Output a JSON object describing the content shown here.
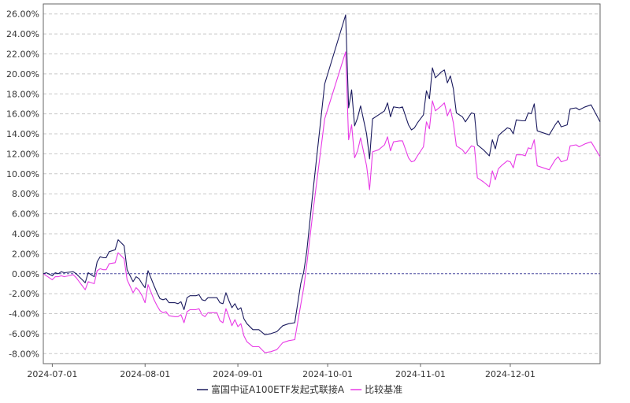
{
  "chart_data": {
    "type": "line",
    "title": "",
    "xlabel": "",
    "ylabel": "",
    "ylim": [
      -9,
      27
    ],
    "y_ticks": [
      -8,
      -6,
      -4,
      -2,
      0,
      2,
      4,
      6,
      8,
      10,
      12,
      14,
      16,
      18,
      20,
      22,
      24,
      26
    ],
    "y_tick_labels": [
      "-8.00%",
      "-6.00%",
      "-4.00%",
      "-2.00%",
      "0.00%",
      "2.00%",
      "4.00%",
      "6.00%",
      "8.00%",
      "10.00%",
      "12.00%",
      "14.00%",
      "16.00%",
      "18.00%",
      "20.00%",
      "22.00%",
      "24.00%",
      "26.00%"
    ],
    "x_range": [
      "2024-06-28",
      "2024-12-31"
    ],
    "x_tick_labels": [
      "2024-07-01",
      "2024-08-01",
      "2024-09-01",
      "2024-10-01",
      "2024-11-01",
      "2024-12-01"
    ],
    "grid": "horizontal dashed",
    "zero_line": "dashed",
    "legend_position": "bottom",
    "colors": {
      "series_1": "#1a1a5e",
      "series_2": "#e83be6",
      "zero_line": "#4a4aa0",
      "grid": "#c8c8c8",
      "axis": "#444444"
    },
    "series": [
      {
        "name": "富国中证A100ETF发起式联接A",
        "points": [
          [
            "2024-06-28",
            0.0
          ],
          [
            "2024-06-29",
            0.1
          ],
          [
            "2024-07-01",
            -0.2
          ],
          [
            "2024-07-02",
            0.1
          ],
          [
            "2024-07-03",
            0.0
          ],
          [
            "2024-07-04",
            0.2
          ],
          [
            "2024-07-05",
            0.1
          ],
          [
            "2024-07-08",
            0.2
          ],
          [
            "2024-07-09",
            0.0
          ],
          [
            "2024-07-10",
            -0.3
          ],
          [
            "2024-07-11",
            -0.6
          ],
          [
            "2024-07-12",
            -0.9
          ],
          [
            "2024-07-13",
            0.1
          ],
          [
            "2024-07-15",
            -0.3
          ],
          [
            "2024-07-16",
            1.2
          ],
          [
            "2024-07-17",
            1.7
          ],
          [
            "2024-07-18",
            1.6
          ],
          [
            "2024-07-19",
            1.6
          ],
          [
            "2024-07-20",
            2.2
          ],
          [
            "2024-07-22",
            2.4
          ],
          [
            "2024-07-23",
            3.4
          ],
          [
            "2024-07-24",
            3.1
          ],
          [
            "2024-07-25",
            2.8
          ],
          [
            "2024-07-26",
            0.4
          ],
          [
            "2024-07-28",
            -0.8
          ],
          [
            "2024-07-29",
            -0.3
          ],
          [
            "2024-07-30",
            -0.5
          ],
          [
            "2024-07-31",
            -1.0
          ],
          [
            "2024-08-01",
            -1.4
          ],
          [
            "2024-08-02",
            0.3
          ],
          [
            "2024-08-04",
            -1.2
          ],
          [
            "2024-08-05",
            -1.9
          ],
          [
            "2024-08-06",
            -2.5
          ],
          [
            "2024-08-07",
            -2.6
          ],
          [
            "2024-08-08",
            -2.5
          ],
          [
            "2024-08-09",
            -2.9
          ],
          [
            "2024-08-11",
            -2.9
          ],
          [
            "2024-08-12",
            -3.0
          ],
          [
            "2024-08-13",
            -2.8
          ],
          [
            "2024-08-14",
            -3.6
          ],
          [
            "2024-08-15",
            -2.4
          ],
          [
            "2024-08-16",
            -2.2
          ],
          [
            "2024-08-18",
            -2.2
          ],
          [
            "2024-08-19",
            -2.1
          ],
          [
            "2024-08-20",
            -2.6
          ],
          [
            "2024-08-21",
            -2.7
          ],
          [
            "2024-08-22",
            -2.4
          ],
          [
            "2024-08-23",
            -2.4
          ],
          [
            "2024-08-25",
            -2.4
          ],
          [
            "2024-08-26",
            -2.9
          ],
          [
            "2024-08-27",
            -3.0
          ],
          [
            "2024-08-28",
            -1.9
          ],
          [
            "2024-08-29",
            -2.7
          ],
          [
            "2024-08-30",
            -3.4
          ],
          [
            "2024-08-31",
            -3.0
          ],
          [
            "2024-09-01",
            -3.6
          ],
          [
            "2024-09-02",
            -3.4
          ],
          [
            "2024-09-03",
            -4.5
          ],
          [
            "2024-09-04",
            -5.0
          ],
          [
            "2024-09-06",
            -5.6
          ],
          [
            "2024-09-08",
            -5.6
          ],
          [
            "2024-09-10",
            -6.1
          ],
          [
            "2024-09-12",
            -6.0
          ],
          [
            "2024-09-14",
            -5.8
          ],
          [
            "2024-09-16",
            -5.2
          ],
          [
            "2024-09-18",
            -5.0
          ],
          [
            "2024-09-20",
            -4.9
          ],
          [
            "2024-09-22",
            -1.0
          ],
          [
            "2024-09-23",
            0.2
          ],
          [
            "2024-09-24",
            2.2
          ],
          [
            "2024-09-26",
            8.0
          ],
          [
            "2024-09-30",
            19.0
          ],
          [
            "2024-10-07",
            25.9
          ],
          [
            "2024-10-08",
            16.6
          ],
          [
            "2024-10-09",
            18.4
          ],
          [
            "2024-10-10",
            14.8
          ],
          [
            "2024-10-11",
            15.6
          ],
          [
            "2024-10-12",
            16.8
          ],
          [
            "2024-10-14",
            14.0
          ],
          [
            "2024-10-15",
            11.5
          ],
          [
            "2024-10-16",
            15.5
          ],
          [
            "2024-10-18",
            15.9
          ],
          [
            "2024-10-20",
            16.3
          ],
          [
            "2024-10-21",
            17.1
          ],
          [
            "2024-10-22",
            15.7
          ],
          [
            "2024-10-23",
            16.7
          ],
          [
            "2024-10-25",
            16.6
          ],
          [
            "2024-10-26",
            16.7
          ],
          [
            "2024-10-28",
            14.9
          ],
          [
            "2024-10-29",
            14.4
          ],
          [
            "2024-10-30",
            14.6
          ],
          [
            "2024-10-31",
            15.1
          ],
          [
            "2024-11-02",
            15.9
          ],
          [
            "2024-11-03",
            18.3
          ],
          [
            "2024-11-04",
            17.5
          ],
          [
            "2024-11-05",
            20.6
          ],
          [
            "2024-11-06",
            19.6
          ],
          [
            "2024-11-08",
            20.2
          ],
          [
            "2024-11-09",
            20.4
          ],
          [
            "2024-11-10",
            19.1
          ],
          [
            "2024-11-11",
            19.8
          ],
          [
            "2024-11-12",
            18.5
          ],
          [
            "2024-11-13",
            16.1
          ],
          [
            "2024-11-15",
            15.7
          ],
          [
            "2024-11-16",
            15.2
          ],
          [
            "2024-11-18",
            16.1
          ],
          [
            "2024-11-19",
            16.0
          ],
          [
            "2024-11-20",
            12.9
          ],
          [
            "2024-11-22",
            12.4
          ],
          [
            "2024-11-24",
            11.8
          ],
          [
            "2024-11-25",
            13.4
          ],
          [
            "2024-11-26",
            12.5
          ],
          [
            "2024-11-27",
            13.8
          ],
          [
            "2024-11-28",
            14.1
          ],
          [
            "2024-11-30",
            14.6
          ],
          [
            "2024-12-01",
            14.5
          ],
          [
            "2024-12-02",
            14.0
          ],
          [
            "2024-12-03",
            15.4
          ],
          [
            "2024-12-05",
            15.3
          ],
          [
            "2024-12-06",
            15.3
          ],
          [
            "2024-12-07",
            16.1
          ],
          [
            "2024-12-08",
            16.0
          ],
          [
            "2024-12-09",
            17.0
          ],
          [
            "2024-12-10",
            14.3
          ],
          [
            "2024-12-12",
            14.1
          ],
          [
            "2024-12-14",
            13.9
          ],
          [
            "2024-12-16",
            14.9
          ],
          [
            "2024-12-17",
            15.3
          ],
          [
            "2024-12-18",
            14.7
          ],
          [
            "2024-12-20",
            14.9
          ],
          [
            "2024-12-21",
            16.5
          ],
          [
            "2024-12-23",
            16.6
          ],
          [
            "2024-12-24",
            16.4
          ],
          [
            "2024-12-26",
            16.7
          ],
          [
            "2024-12-28",
            16.9
          ],
          [
            "2024-12-31",
            15.2
          ]
        ]
      },
      {
        "name": "比较基准",
        "points": [
          [
            "2024-06-28",
            0.0
          ],
          [
            "2024-06-29",
            -0.2
          ],
          [
            "2024-07-01",
            -0.6
          ],
          [
            "2024-07-02",
            -0.3
          ],
          [
            "2024-07-03",
            -0.3
          ],
          [
            "2024-07-04",
            -0.2
          ],
          [
            "2024-07-05",
            -0.3
          ],
          [
            "2024-07-08",
            -0.1
          ],
          [
            "2024-07-09",
            -0.4
          ],
          [
            "2024-07-10",
            -0.8
          ],
          [
            "2024-07-11",
            -1.2
          ],
          [
            "2024-07-12",
            -1.6
          ],
          [
            "2024-07-13",
            -0.8
          ],
          [
            "2024-07-15",
            -1.0
          ],
          [
            "2024-07-16",
            0.3
          ],
          [
            "2024-07-17",
            0.5
          ],
          [
            "2024-07-18",
            0.4
          ],
          [
            "2024-07-19",
            0.4
          ],
          [
            "2024-07-20",
            1.0
          ],
          [
            "2024-07-22",
            1.1
          ],
          [
            "2024-07-23",
            2.1
          ],
          [
            "2024-07-24",
            1.8
          ],
          [
            "2024-07-25",
            1.5
          ],
          [
            "2024-07-26",
            -0.6
          ],
          [
            "2024-07-28",
            -1.9
          ],
          [
            "2024-07-29",
            -1.4
          ],
          [
            "2024-07-30",
            -1.7
          ],
          [
            "2024-07-31",
            -2.2
          ],
          [
            "2024-08-01",
            -2.9
          ],
          [
            "2024-08-02",
            -1.1
          ],
          [
            "2024-08-04",
            -2.6
          ],
          [
            "2024-08-05",
            -3.2
          ],
          [
            "2024-08-06",
            -3.7
          ],
          [
            "2024-08-07",
            -3.9
          ],
          [
            "2024-08-08",
            -3.8
          ],
          [
            "2024-08-09",
            -4.2
          ],
          [
            "2024-08-11",
            -4.3
          ],
          [
            "2024-08-12",
            -4.3
          ],
          [
            "2024-08-13",
            -4.1
          ],
          [
            "2024-08-14",
            -4.9
          ],
          [
            "2024-08-15",
            -3.8
          ],
          [
            "2024-08-16",
            -3.6
          ],
          [
            "2024-08-18",
            -3.6
          ],
          [
            "2024-08-19",
            -3.5
          ],
          [
            "2024-08-20",
            -4.1
          ],
          [
            "2024-08-21",
            -4.3
          ],
          [
            "2024-08-22",
            -3.9
          ],
          [
            "2024-08-23",
            -3.9
          ],
          [
            "2024-08-25",
            -3.9
          ],
          [
            "2024-08-26",
            -4.7
          ],
          [
            "2024-08-27",
            -4.9
          ],
          [
            "2024-08-28",
            -3.5
          ],
          [
            "2024-08-29",
            -4.3
          ],
          [
            "2024-08-30",
            -5.2
          ],
          [
            "2024-08-31",
            -4.6
          ],
          [
            "2024-09-01",
            -5.3
          ],
          [
            "2024-09-02",
            -5.0
          ],
          [
            "2024-09-03",
            -6.2
          ],
          [
            "2024-09-04",
            -6.8
          ],
          [
            "2024-09-06",
            -7.3
          ],
          [
            "2024-09-08",
            -7.3
          ],
          [
            "2024-09-10",
            -7.9
          ],
          [
            "2024-09-12",
            -7.8
          ],
          [
            "2024-09-14",
            -7.6
          ],
          [
            "2024-09-16",
            -6.9
          ],
          [
            "2024-09-18",
            -6.7
          ],
          [
            "2024-09-20",
            -6.6
          ],
          [
            "2024-09-22",
            -3.1
          ],
          [
            "2024-09-23",
            -1.4
          ],
          [
            "2024-09-24",
            0.9
          ],
          [
            "2024-09-26",
            6.0
          ],
          [
            "2024-09-30",
            15.5
          ],
          [
            "2024-10-07",
            22.2
          ],
          [
            "2024-10-08",
            13.4
          ],
          [
            "2024-10-09",
            14.9
          ],
          [
            "2024-10-10",
            11.6
          ],
          [
            "2024-10-11",
            12.3
          ],
          [
            "2024-10-12",
            13.6
          ],
          [
            "2024-10-14",
            10.8
          ],
          [
            "2024-10-15",
            8.4
          ],
          [
            "2024-10-16",
            12.2
          ],
          [
            "2024-10-18",
            12.4
          ],
          [
            "2024-10-20",
            12.9
          ],
          [
            "2024-10-21",
            13.7
          ],
          [
            "2024-10-22",
            12.3
          ],
          [
            "2024-10-23",
            13.2
          ],
          [
            "2024-10-25",
            13.3
          ],
          [
            "2024-10-26",
            13.3
          ],
          [
            "2024-10-28",
            11.6
          ],
          [
            "2024-10-29",
            11.2
          ],
          [
            "2024-10-30",
            11.3
          ],
          [
            "2024-10-31",
            11.8
          ],
          [
            "2024-11-02",
            12.7
          ],
          [
            "2024-11-03",
            15.2
          ],
          [
            "2024-11-04",
            14.5
          ],
          [
            "2024-11-05",
            17.3
          ],
          [
            "2024-11-06",
            16.3
          ],
          [
            "2024-11-08",
            16.8
          ],
          [
            "2024-11-09",
            17.1
          ],
          [
            "2024-11-10",
            15.8
          ],
          [
            "2024-11-11",
            16.5
          ],
          [
            "2024-11-12",
            15.1
          ],
          [
            "2024-11-13",
            12.8
          ],
          [
            "2024-11-15",
            12.4
          ],
          [
            "2024-11-16",
            12.0
          ],
          [
            "2024-11-18",
            12.8
          ],
          [
            "2024-11-19",
            12.7
          ],
          [
            "2024-11-20",
            9.6
          ],
          [
            "2024-11-22",
            9.2
          ],
          [
            "2024-11-24",
            8.7
          ],
          [
            "2024-11-25",
            10.3
          ],
          [
            "2024-11-26",
            9.4
          ],
          [
            "2024-11-27",
            10.5
          ],
          [
            "2024-11-28",
            10.8
          ],
          [
            "2024-11-30",
            11.3
          ],
          [
            "2024-12-01",
            11.2
          ],
          [
            "2024-12-02",
            10.6
          ],
          [
            "2024-12-03",
            11.9
          ],
          [
            "2024-12-05",
            11.9
          ],
          [
            "2024-12-06",
            11.8
          ],
          [
            "2024-12-07",
            12.6
          ],
          [
            "2024-12-08",
            12.5
          ],
          [
            "2024-12-09",
            13.4
          ],
          [
            "2024-12-10",
            10.8
          ],
          [
            "2024-12-12",
            10.6
          ],
          [
            "2024-12-14",
            10.4
          ],
          [
            "2024-12-16",
            11.4
          ],
          [
            "2024-12-17",
            11.7
          ],
          [
            "2024-12-18",
            11.2
          ],
          [
            "2024-12-20",
            11.4
          ],
          [
            "2024-12-21",
            12.8
          ],
          [
            "2024-12-23",
            12.9
          ],
          [
            "2024-12-24",
            12.7
          ],
          [
            "2024-12-26",
            13.0
          ],
          [
            "2024-12-28",
            13.2
          ],
          [
            "2024-12-31",
            11.7
          ]
        ]
      }
    ]
  }
}
